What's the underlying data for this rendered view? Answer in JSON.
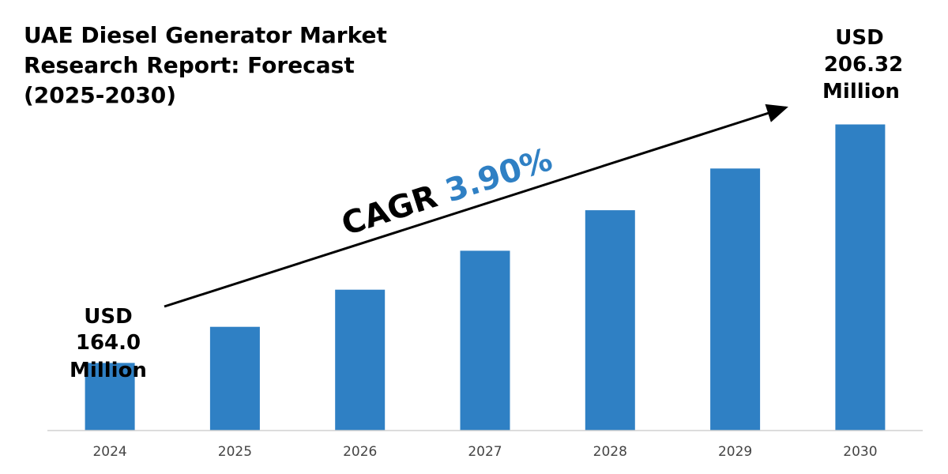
{
  "chart_data": {
    "type": "bar",
    "title": "UAE Diesel Generator Market Research Report: Forecast (2025-2030)",
    "title_lines": [
      "UAE Diesel Generator Market",
      "Research Report: Forecast",
      "(2025-2030)"
    ],
    "categories": [
      "2024",
      "2025",
      "2026",
      "2027",
      "2028",
      "2029",
      "2030"
    ],
    "values": [
      164.0,
      170.4,
      177.0,
      183.9,
      191.1,
      198.5,
      206.32
    ],
    "xlabel": "",
    "ylabel": "",
    "ylim": [
      152,
      212
    ],
    "grid": false,
    "bar_color": "#2f80c4",
    "start_label": {
      "line1": "USD",
      "line2": "164.0",
      "line3": "Million"
    },
    "end_label": {
      "line1": "USD",
      "line2": "206.32",
      "line3": "Million"
    },
    "cagr": {
      "label": "CAGR",
      "value": "3.90%",
      "label_color": "#000000",
      "value_color": "#2f80c4"
    }
  }
}
